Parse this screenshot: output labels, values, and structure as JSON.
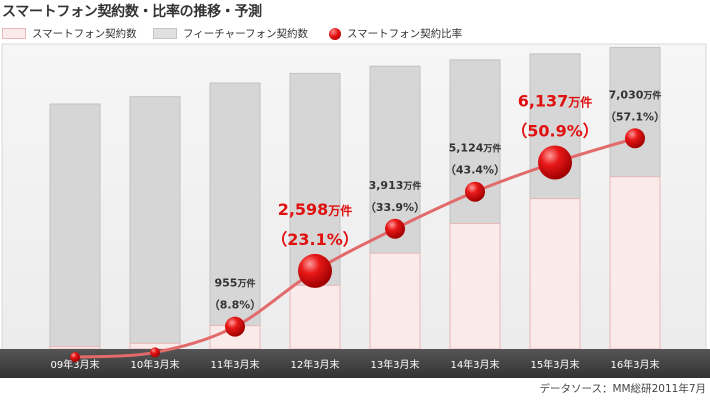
{
  "title": "スマートフォン契約数・比率の推移・予測",
  "legend": {
    "smartphone_label": "スマートフォン契約数",
    "feature_label": "フィーチャーフォン契約数",
    "ratio_label": "スマートフォン契約比率"
  },
  "source": "データソース：MM総研2011年7月",
  "colors": {
    "smartphone_bar": "#fbeaea",
    "feature_bar": "#d6d6d6",
    "ratio_line": "#e26a6a",
    "ratio_dot": "#e01010",
    "highlight_text": "#e01010",
    "axis_band": "#444444"
  },
  "chart_data": {
    "type": "bar",
    "categories": [
      "09年3月末",
      "10年3月末",
      "11年3月末",
      "12年3月末",
      "13年3月末",
      "14年3月末",
      "15年3月末",
      "16年3月末"
    ],
    "series": [
      {
        "name": "スマートフォン契約数",
        "values": [
          100,
          230,
          955,
          2598,
          3913,
          5124,
          6137,
          7030
        ]
      },
      {
        "name": "フィーチャーフォン契約数",
        "values": [
          9900,
          10070,
          9900,
          8650,
          7630,
          6680,
          5910,
          5280
        ]
      },
      {
        "name": "スマートフォン契約比率",
        "values": [
          1.0,
          2.2,
          8.8,
          23.1,
          33.9,
          43.4,
          50.9,
          57.1
        ]
      }
    ],
    "annotations": [
      {
        "index": 2,
        "value": "955",
        "unit": "万件",
        "ratio": "（8.8%）",
        "highlight": false
      },
      {
        "index": 3,
        "value": "2,598",
        "unit": "万件",
        "ratio": "（23.1%）",
        "highlight": true
      },
      {
        "index": 4,
        "value": "3,913",
        "unit": "万件",
        "ratio": "（33.9%）",
        "highlight": false
      },
      {
        "index": 5,
        "value": "5,124",
        "unit": "万件",
        "ratio": "（43.4%）",
        "highlight": false
      },
      {
        "index": 6,
        "value": "6,137",
        "unit": "万件",
        "ratio": "（50.9%）",
        "highlight": true
      },
      {
        "index": 7,
        "value": "7,030",
        "unit": "万件",
        "ratio": "（57.1%）",
        "highlight": false
      }
    ],
    "highlight_points": [
      3,
      6
    ],
    "grid": false,
    "legend_position": "top-left"
  }
}
